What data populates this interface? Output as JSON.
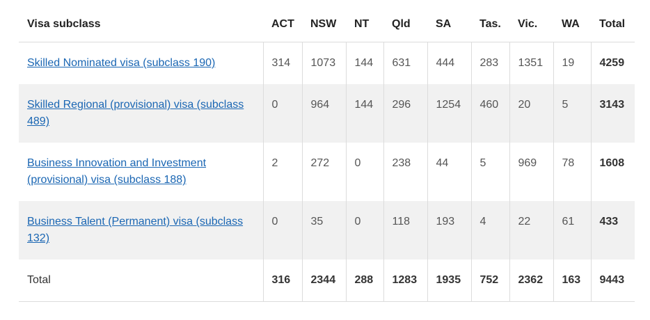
{
  "table": {
    "headers": [
      "Visa subclass",
      "ACT",
      "NSW",
      "NT",
      "Qld",
      "SA",
      "Tas.",
      "Vic.",
      "WA",
      "Total"
    ],
    "rows": [
      {
        "label": "Skilled Nominated visa (subclass 190)",
        "values": [
          "314",
          "1073",
          "144",
          "631",
          "444",
          "283",
          "1351",
          "19"
        ],
        "total": "4259"
      },
      {
        "label": "Skilled Regional (provisional) visa (subclass 489)",
        "values": [
          "0",
          "964",
          "144",
          "296",
          "1254",
          "460",
          "20",
          "5"
        ],
        "total": "3143"
      },
      {
        "label": "Business Innovation and Investment (provisional) visa (subclass 188)",
        "values": [
          "2",
          "272",
          "0",
          "238",
          "44",
          "5",
          "969",
          "78"
        ],
        "total": "1608"
      },
      {
        "label": "Business Talent (Permanent) visa (subclass 132)",
        "values": [
          "0",
          "35",
          "0",
          "118",
          "193",
          "4",
          "22",
          "61"
        ],
        "total": "433"
      }
    ],
    "total_row": {
      "label": "Total",
      "values": [
        "316",
        "2344",
        "288",
        "1283",
        "1935",
        "752",
        "2362",
        "163"
      ],
      "total": "9443"
    }
  },
  "colors": {
    "link": "#1a66b3",
    "shade": "#f1f1f1",
    "border": "#dcdcdc"
  }
}
